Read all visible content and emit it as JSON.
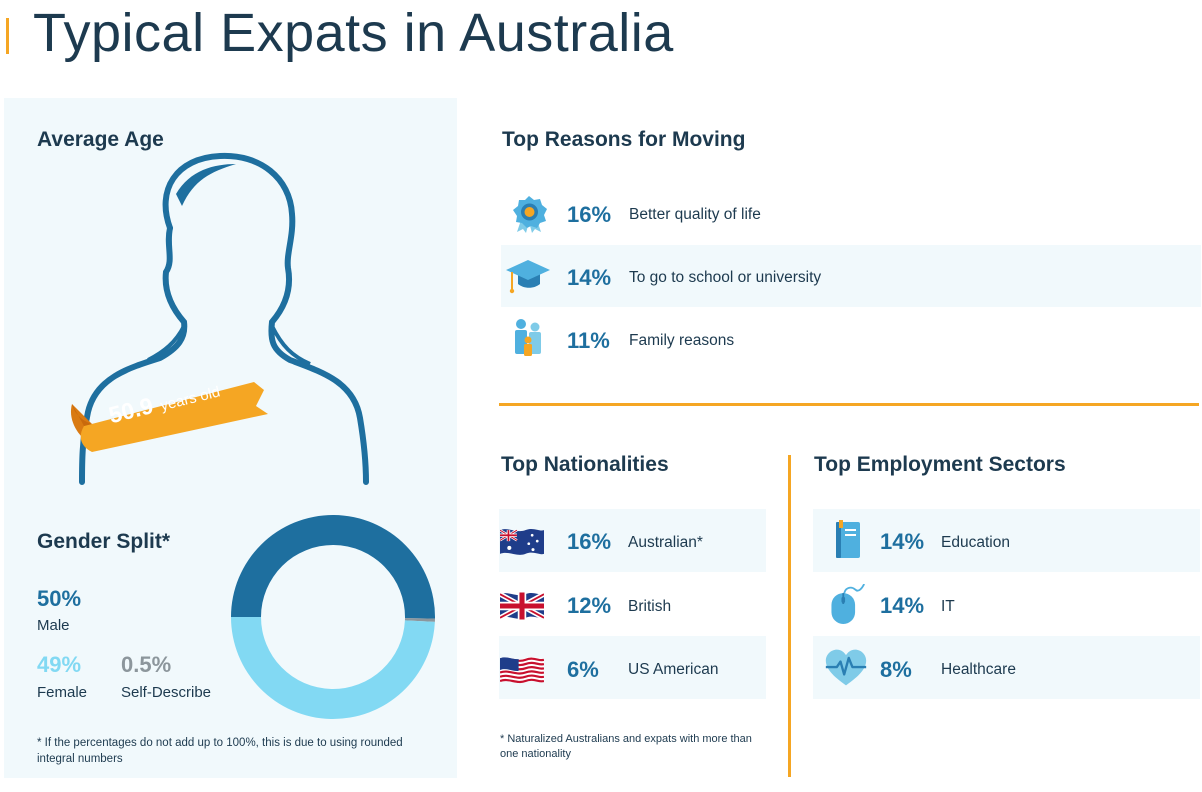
{
  "title": "Typical Expats in Australia",
  "average_age": {
    "heading": "Average Age",
    "value": "50.9",
    "unit": "years old"
  },
  "gender_split": {
    "heading": "Gender Split*",
    "male": {
      "value": "50%",
      "label": "Male"
    },
    "female": {
      "value": "49%",
      "label": "Female"
    },
    "self_describe": {
      "value": "0.5%",
      "label": "Self-Describe"
    },
    "footnote": "* If the percentages do not add up to 100%, this is due to using rounded integral numbers"
  },
  "reasons": {
    "heading": "Top Reasons for Moving",
    "items": [
      {
        "pct": "16%",
        "label": "Better quality of life",
        "icon": "award-ribbon-icon"
      },
      {
        "pct": "14%",
        "label": "To go to school or university",
        "icon": "graduation-cap-icon"
      },
      {
        "pct": "11%",
        "label": "Family reasons",
        "icon": "family-icon"
      }
    ]
  },
  "nationalities": {
    "heading": "Top Nationalities",
    "items": [
      {
        "pct": "16%",
        "label": "Australian*",
        "icon": "australia-flag-icon"
      },
      {
        "pct": "12%",
        "label": "British",
        "icon": "uk-flag-icon"
      },
      {
        "pct": "6%",
        "label": "US American",
        "icon": "us-flag-icon"
      }
    ],
    "footnote": "* Naturalized Australians and expats with more than one nationality"
  },
  "sectors": {
    "heading": "Top Employment Sectors",
    "items": [
      {
        "pct": "14%",
        "label": "Education",
        "icon": "book-icon"
      },
      {
        "pct": "14%",
        "label": "IT",
        "icon": "computer-mouse-icon"
      },
      {
        "pct": "8%",
        "label": "Healthcare",
        "icon": "heartbeat-icon"
      }
    ]
  },
  "colors": {
    "accent": "#f5a623",
    "dark_blue": "#1e6f9f",
    "light_blue": "#82d9f3",
    "gray": "#8c969c",
    "panel_bg": "#f1f9fc"
  },
  "chart_data": [
    {
      "type": "pie",
      "categories": [
        "Male",
        "Female",
        "Self-Describe"
      ],
      "values": [
        50,
        49,
        0.5
      ],
      "colors": [
        "#1e6f9f",
        "#82d9f3",
        "#8c969c"
      ],
      "title": "Gender Split*"
    },
    {
      "type": "bar",
      "title": "Top Reasons for Moving",
      "categories": [
        "Better quality of life",
        "To go to school or university",
        "Family reasons"
      ],
      "values": [
        16,
        14,
        11
      ]
    },
    {
      "type": "bar",
      "title": "Top Nationalities",
      "categories": [
        "Australian*",
        "British",
        "US American"
      ],
      "values": [
        16,
        12,
        6
      ]
    },
    {
      "type": "bar",
      "title": "Top Employment Sectors",
      "categories": [
        "Education",
        "IT",
        "Healthcare"
      ],
      "values": [
        14,
        14,
        8
      ]
    }
  ]
}
